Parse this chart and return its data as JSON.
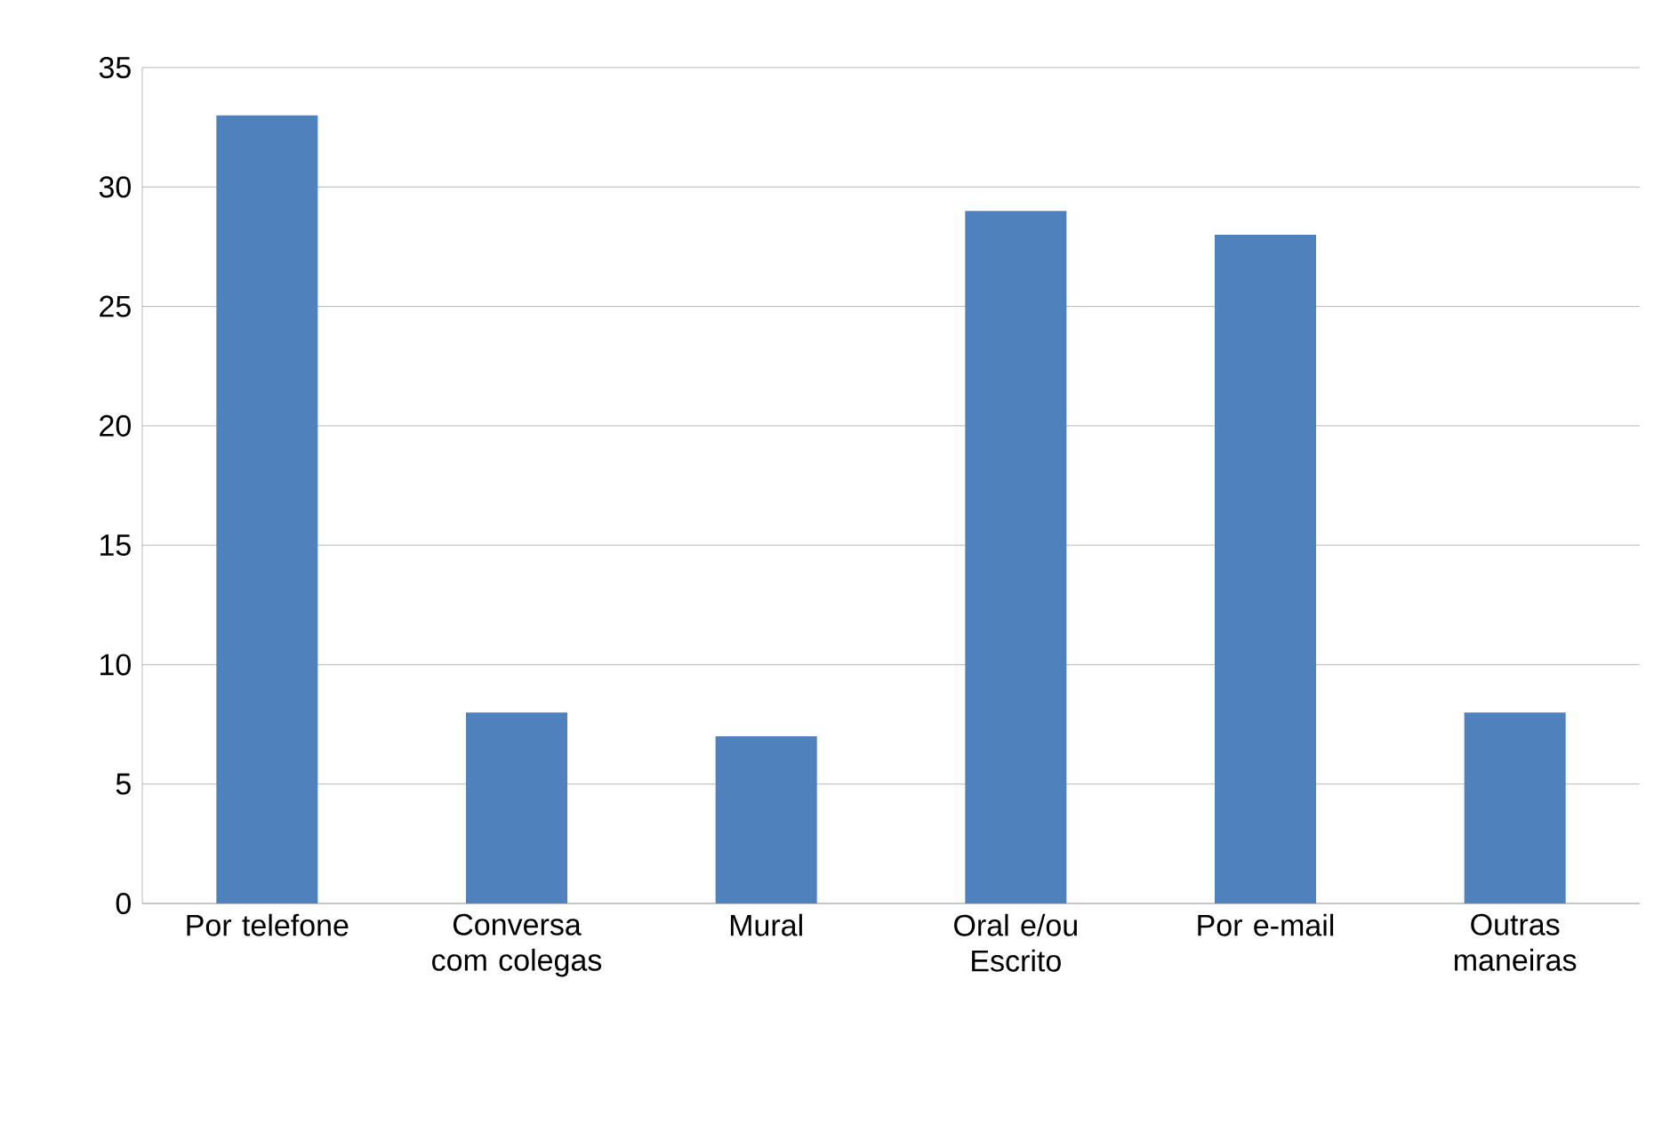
{
  "chart_data": {
    "type": "bar",
    "categories": [
      "Por telefone",
      "Conversa com colegas",
      "Mural",
      "Oral e/ou Escrito",
      "Por e-mail",
      "Outras maneiras"
    ],
    "values": [
      33,
      8,
      7,
      29,
      28,
      8
    ],
    "color": "#4f81bd",
    "ylim": [
      0,
      35
    ],
    "yticks": [
      0,
      5,
      10,
      15,
      20,
      25,
      30,
      35
    ],
    "grid": "y"
  }
}
